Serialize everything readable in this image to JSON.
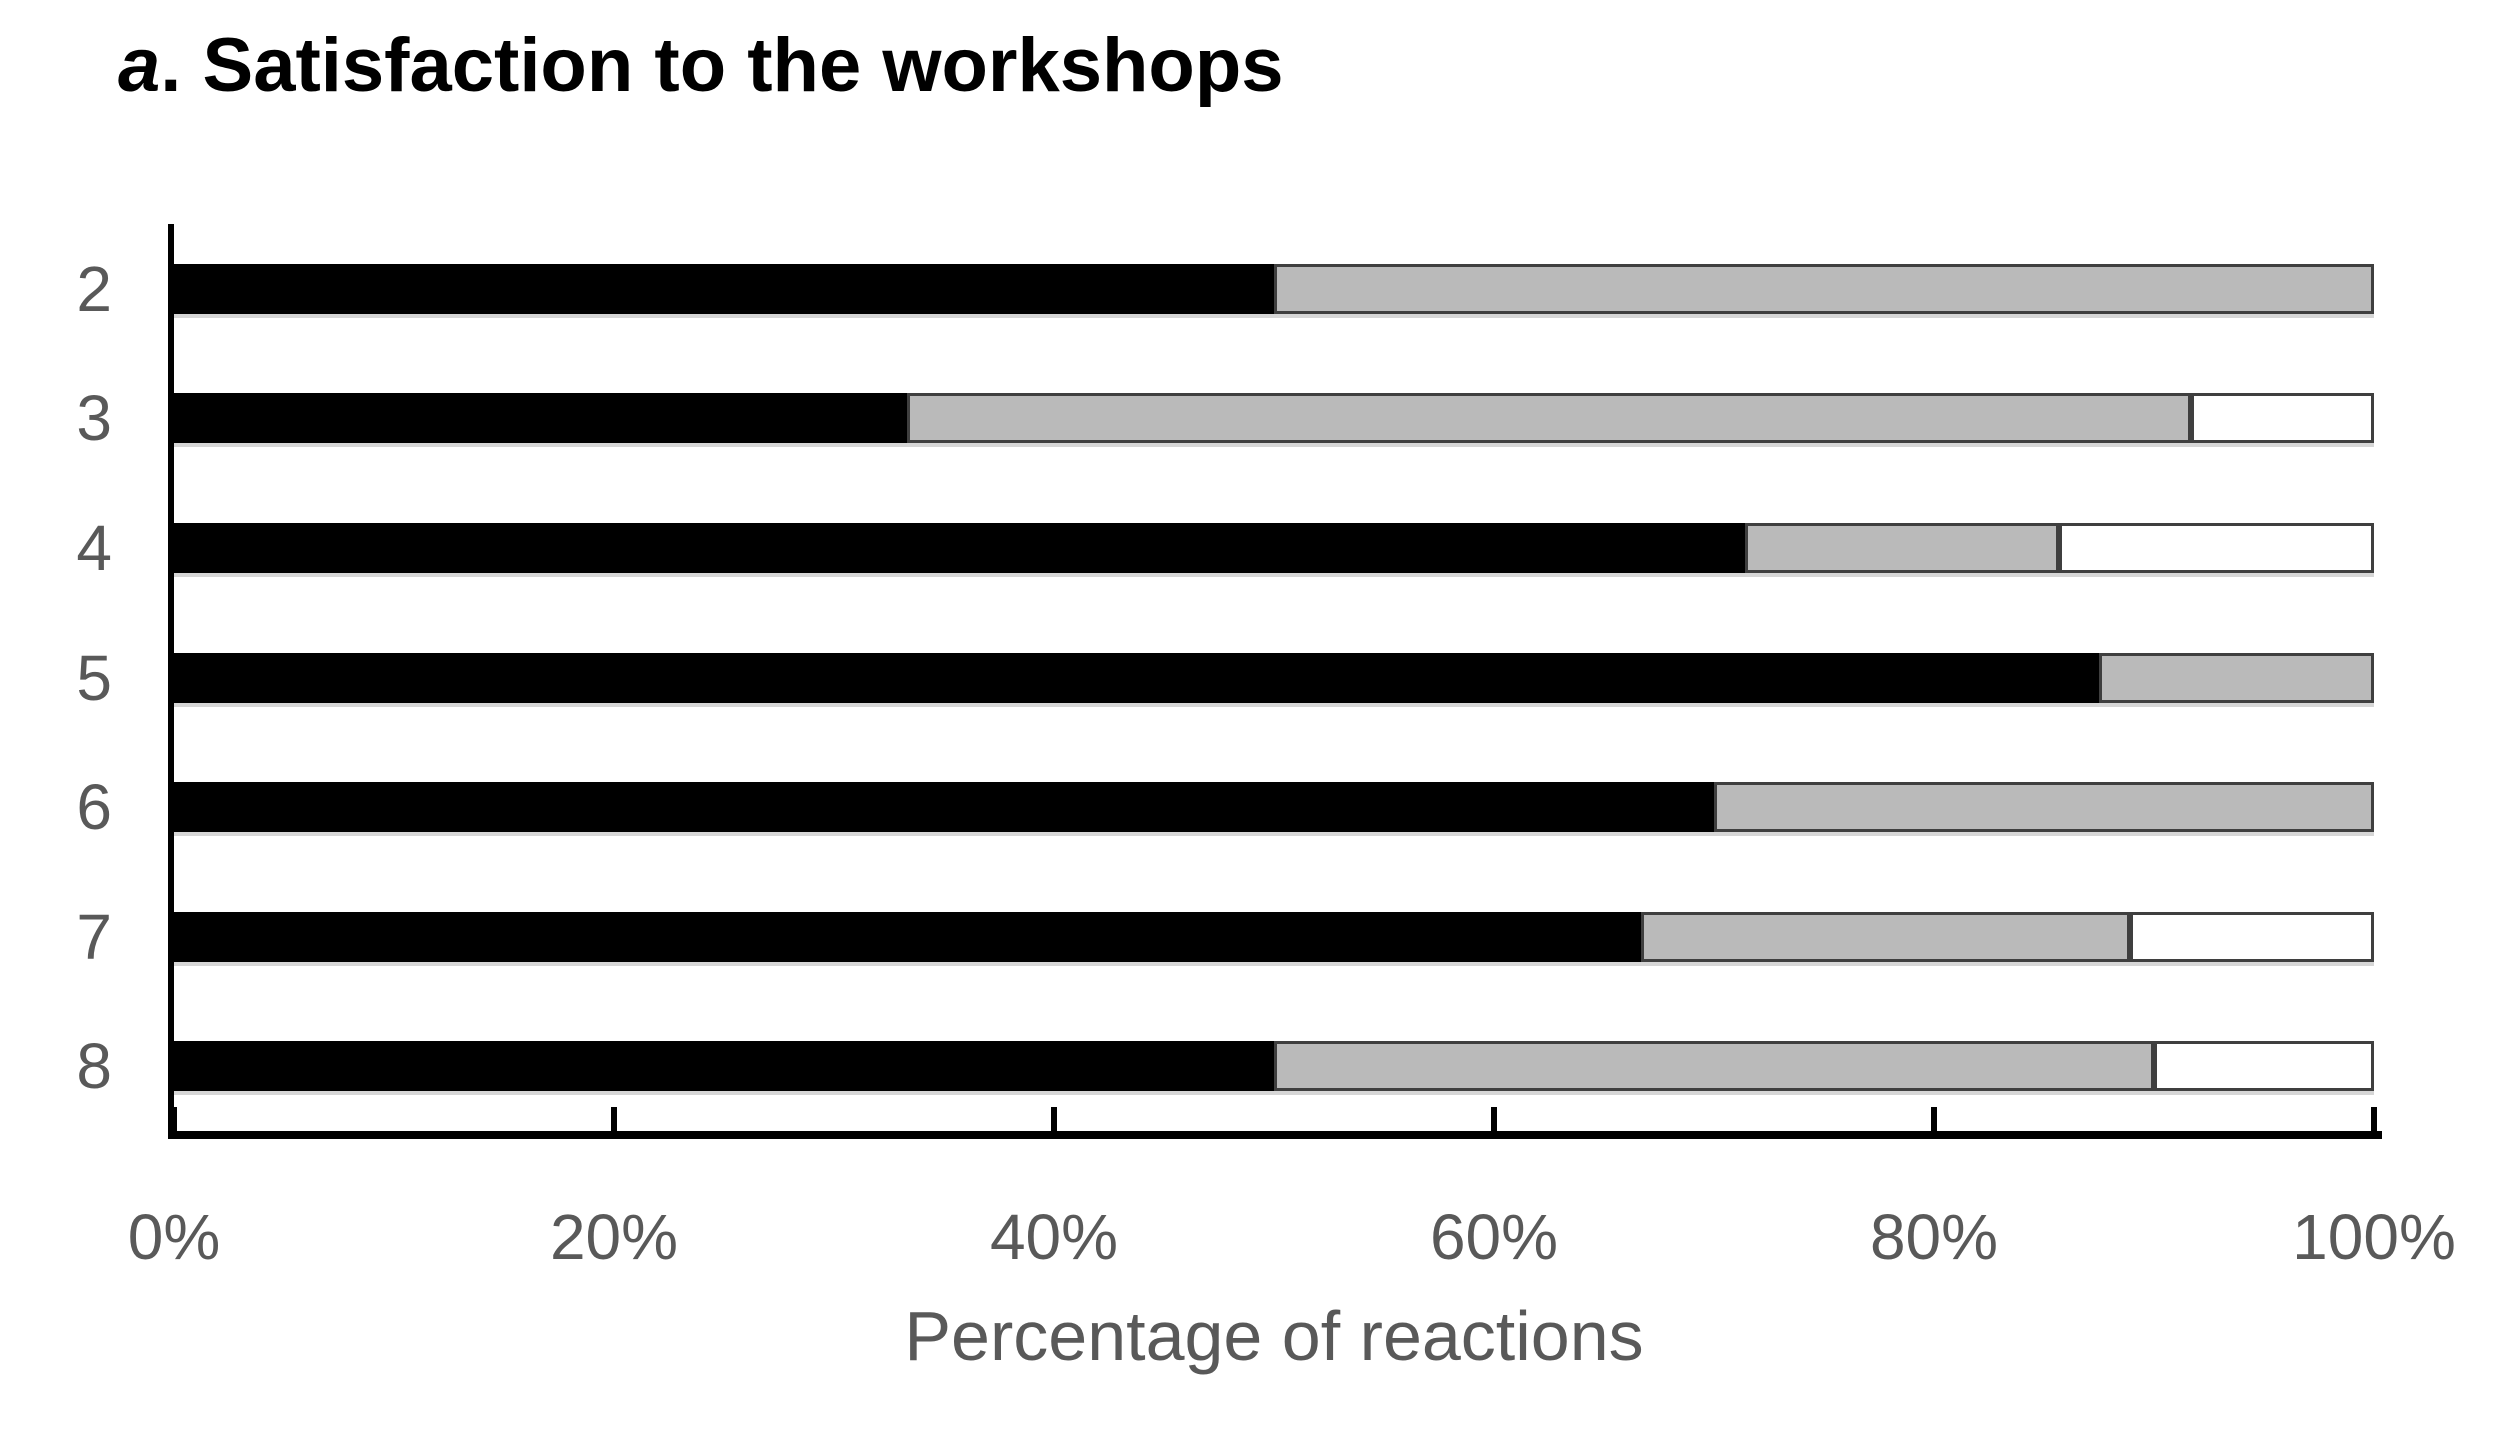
{
  "title": {
    "prefix": "a",
    "rest": ". Satisfaction to the workshops"
  },
  "chart_data": {
    "type": "bar",
    "orientation": "horizontal-stacked",
    "title": "a. Satisfaction to the workshops",
    "categories": [
      "2",
      "3",
      "4",
      "5",
      "6",
      "7",
      "8"
    ],
    "series": [
      {
        "name": "black-segment",
        "color": "#000000",
        "values": [
          50,
          33.3,
          71.4,
          87.5,
          70,
          66.7,
          50
        ]
      },
      {
        "name": "gray-segment",
        "color": "#bababa",
        "values": [
          50,
          58.4,
          14.3,
          12.5,
          30,
          22.2,
          40
        ]
      },
      {
        "name": "white-segment",
        "color": "#ffffff",
        "values": [
          0,
          8.3,
          14.3,
          0,
          0,
          11.1,
          10
        ]
      }
    ],
    "xlabel": "Percentage of reactions",
    "x_ticks": [
      "0%",
      "20%",
      "40%",
      "60%",
      "80%",
      "100%"
    ],
    "x_tick_values": [
      0,
      20,
      40,
      60,
      80,
      100
    ],
    "xlim": [
      0,
      100
    ],
    "grid": false,
    "legend": false
  },
  "colors": {
    "segment_border": "#3f3f3f",
    "axis": "#000000",
    "labels": "#595959",
    "title_text": "#000000",
    "background": "#ffffff"
  }
}
